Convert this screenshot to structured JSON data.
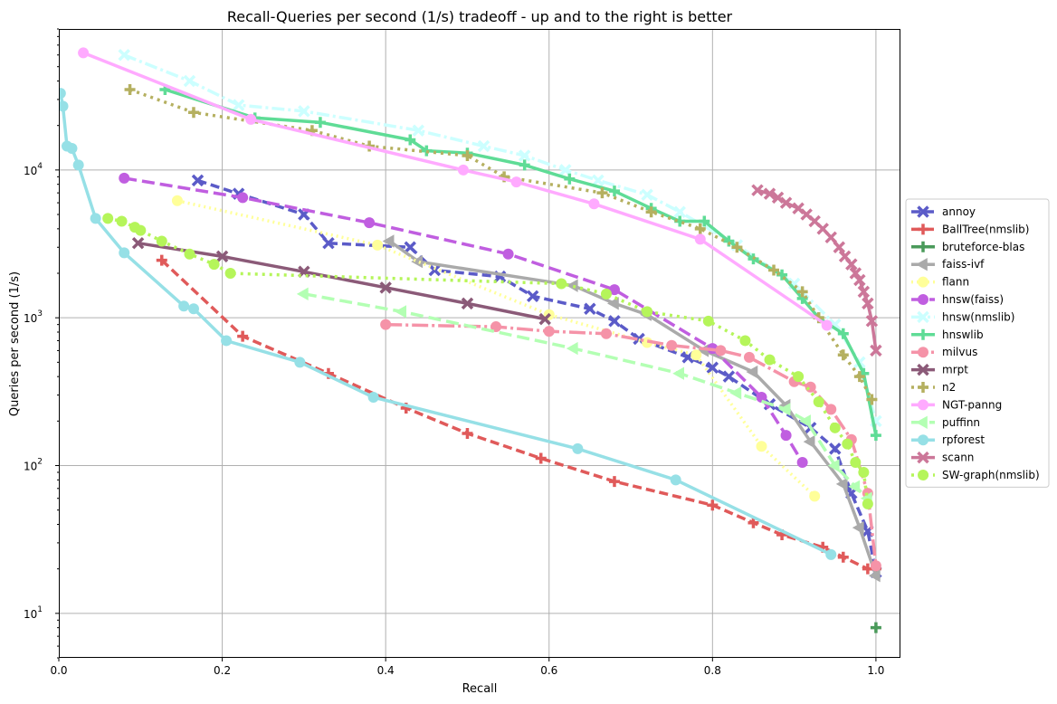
{
  "chart_data": {
    "type": "line",
    "title": "Recall-Queries per second (1/s) tradeoff - up and to the right is better",
    "xlabel": "Recall",
    "ylabel": "Queries per second (1/s)",
    "xlim": [
      0.0,
      1.03
    ],
    "ylim": [
      5,
      90000
    ],
    "yscale": "log",
    "grid": true,
    "legend_position": "right",
    "x_ticks": [
      "0.0",
      "0.2",
      "0.4",
      "0.6",
      "0.8",
      "1.0"
    ],
    "y_ticks": [
      {
        "value": 10,
        "base": "10",
        "exp": "1"
      },
      {
        "value": 100,
        "base": "10",
        "exp": "2"
      },
      {
        "value": 1000,
        "base": "10",
        "exp": "3"
      },
      {
        "value": 10000,
        "base": "10",
        "exp": "4"
      }
    ],
    "series": [
      {
        "name": "annoy",
        "color": "#5b5bc8",
        "dash": "10,5",
        "marker": "x",
        "x": [
          0.17,
          0.22,
          0.3,
          0.33,
          0.43,
          0.46,
          0.54,
          0.58,
          0.65,
          0.68,
          0.71,
          0.77,
          0.8,
          0.82,
          0.87,
          0.92,
          0.95,
          0.97,
          0.99,
          1.0
        ],
        "y": [
          8500,
          6900,
          5000,
          3200,
          3000,
          2100,
          1900,
          1400,
          1150,
          950,
          720,
          540,
          460,
          400,
          260,
          180,
          130,
          65,
          36,
          19
        ]
      },
      {
        "name": "BallTree(nmslib)",
        "color": "#e05a5a",
        "dash": "10,5",
        "marker": "plus",
        "x": [
          0.126,
          0.225,
          0.33,
          0.425,
          0.5,
          0.59,
          0.68,
          0.8,
          0.85,
          0.885,
          0.935,
          0.96,
          0.99,
          1.0
        ],
        "y": [
          2450,
          750,
          420,
          245,
          165,
          112,
          78,
          54,
          41,
          34,
          28,
          24,
          20,
          20
        ]
      },
      {
        "name": "bruteforce-blas",
        "color": "#4a9a5a",
        "dash": "",
        "marker": "plus",
        "x": [
          1.0
        ],
        "y": [
          8
        ]
      },
      {
        "name": "faiss-ivf",
        "color": "#aaaaaa",
        "dash": "",
        "marker": "tri",
        "x": [
          0.405,
          0.44,
          0.63,
          0.68,
          0.72,
          0.79,
          0.85,
          0.89,
          0.92,
          0.96,
          0.98,
          1.0
        ],
        "y": [
          3300,
          2400,
          1650,
          1250,
          1050,
          600,
          430,
          255,
          145,
          75,
          38,
          18
        ]
      },
      {
        "name": "flann",
        "color": "#ffff99",
        "dash": "2,4",
        "marker": "o",
        "x": [
          0.145,
          0.39,
          0.6,
          0.72,
          0.78,
          0.86,
          0.925
        ],
        "y": [
          6200,
          3100,
          1050,
          680,
          560,
          135,
          62
        ]
      },
      {
        "name": "hnsw(faiss)",
        "color": "#c05ee0",
        "dash": "14,6",
        "marker": "o",
        "x": [
          0.08,
          0.225,
          0.38,
          0.55,
          0.68,
          0.8,
          0.86,
          0.89,
          0.91
        ],
        "y": [
          8800,
          6500,
          4400,
          2700,
          1550,
          620,
          290,
          160,
          105
        ]
      },
      {
        "name": "hnsw(nmslib)",
        "color": "#ccffff",
        "dash": "14,4,3,4",
        "marker": "x",
        "x": [
          0.08,
          0.16,
          0.22,
          0.3,
          0.44,
          0.52,
          0.57,
          0.62,
          0.66,
          0.72,
          0.76,
          0.83,
          0.9,
          0.95,
          0.98,
          1.0
        ],
        "y": [
          60000,
          40000,
          27500,
          25000,
          18500,
          14500,
          12500,
          10000,
          8500,
          6800,
          5200,
          3100,
          1700,
          900,
          500,
          200
        ]
      },
      {
        "name": "hnswlib",
        "color": "#5fdc96",
        "dash": "",
        "marker": "plus",
        "x": [
          0.13,
          0.24,
          0.32,
          0.43,
          0.45,
          0.5,
          0.57,
          0.625,
          0.68,
          0.725,
          0.76,
          0.79,
          0.82,
          0.85,
          0.885,
          0.91,
          0.93,
          0.96,
          0.985,
          1.0
        ],
        "y": [
          35000,
          22500,
          21000,
          16000,
          13500,
          13000,
          10800,
          8700,
          7200,
          5500,
          4500,
          4500,
          3300,
          2500,
          1950,
          1350,
          1000,
          780,
          420,
          160
        ]
      },
      {
        "name": "milvus",
        "color": "#f593a8",
        "dash": "18,4,3,4",
        "marker": "o",
        "x": [
          0.4,
          0.535,
          0.6,
          0.67,
          0.75,
          0.81,
          0.845,
          0.9,
          0.92,
          0.945,
          0.97,
          0.99,
          1.0
        ],
        "y": [
          900,
          870,
          810,
          780,
          650,
          600,
          540,
          370,
          340,
          240,
          150,
          65,
          21
        ]
      },
      {
        "name": "mrpt",
        "color": "#8b5a78",
        "dash": "",
        "marker": "x",
        "x": [
          0.097,
          0.2,
          0.3,
          0.4,
          0.5,
          0.595
        ],
        "y": [
          3200,
          2600,
          2050,
          1600,
          1250,
          980
        ]
      },
      {
        "name": "n2",
        "color": "#b5b060",
        "dash": "3,5",
        "marker": "plus",
        "x": [
          0.087,
          0.165,
          0.31,
          0.38,
          0.5,
          0.545,
          0.665,
          0.725,
          0.785,
          0.83,
          0.875,
          0.91,
          0.93,
          0.96,
          0.98,
          0.995
        ],
        "y": [
          35000,
          24500,
          18500,
          14500,
          12500,
          9000,
          7000,
          5200,
          4000,
          3000,
          2100,
          1500,
          1000,
          560,
          400,
          280
        ]
      },
      {
        "name": "NGT-panng",
        "color": "#ffaaff",
        "dash": "",
        "marker": "o",
        "x": [
          0.03,
          0.235,
          0.495,
          0.56,
          0.655,
          0.785,
          0.94
        ],
        "y": [
          62000,
          22000,
          10000,
          8300,
          5900,
          3400,
          890
        ]
      },
      {
        "name": "puffinn",
        "color": "#b3ffb3",
        "dash": "14,6",
        "marker": "tri",
        "x": [
          0.3,
          0.42,
          0.63,
          0.76,
          0.83,
          0.89,
          0.915,
          0.95,
          0.975,
          0.99
        ],
        "y": [
          1450,
          1100,
          620,
          420,
          310,
          240,
          200,
          100,
          72,
          60
        ]
      },
      {
        "name": "rpforest",
        "color": "#96e0e6",
        "dash": "",
        "marker": "o",
        "x": [
          0.002,
          0.005,
          0.01,
          0.016,
          0.024,
          0.045,
          0.08,
          0.153,
          0.165,
          0.205,
          0.295,
          0.385,
          0.635,
          0.755,
          0.945
        ],
        "y": [
          33000,
          27000,
          14500,
          14000,
          10800,
          4700,
          2750,
          1200,
          1150,
          700,
          500,
          290,
          130,
          80,
          25
        ]
      },
      {
        "name": "scann",
        "color": "#cc7799",
        "dash": "",
        "marker": "x",
        "x": [
          0.855,
          0.87,
          0.88,
          0.89,
          0.905,
          0.915,
          0.925,
          0.935,
          0.945,
          0.955,
          0.962,
          0.97,
          0.975,
          0.98,
          0.985,
          0.99,
          0.995,
          1.0
        ],
        "y": [
          7300,
          6900,
          6500,
          6000,
          5500,
          5000,
          4500,
          4000,
          3500,
          3000,
          2600,
          2300,
          2000,
          1800,
          1500,
          1250,
          950,
          600
        ]
      },
      {
        "name": "SW-graph(nmslib)",
        "color": "#b5f55a",
        "dash": "3,5",
        "marker": "o",
        "x": [
          0.06,
          0.077,
          0.093,
          0.1,
          0.126,
          0.16,
          0.19,
          0.21,
          0.615,
          0.67,
          0.72,
          0.795,
          0.84,
          0.87,
          0.905,
          0.93,
          0.95,
          0.965,
          0.975,
          0.985,
          0.99
        ],
        "y": [
          4700,
          4500,
          4100,
          3900,
          3300,
          2700,
          2300,
          2000,
          1700,
          1450,
          1100,
          950,
          700,
          520,
          400,
          270,
          180,
          140,
          105,
          90,
          55
        ]
      }
    ]
  }
}
